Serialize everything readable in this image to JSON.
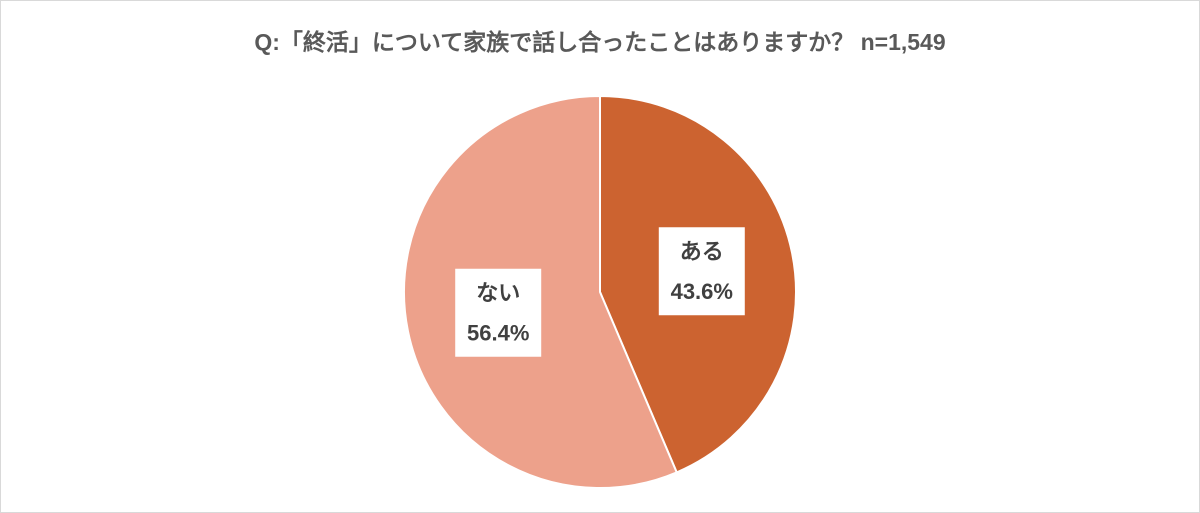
{
  "chart_data": {
    "type": "pie",
    "title": "Q:「終活」について家族で話し合ったことはありますか？ n=1,549",
    "categories": [
      "ある",
      "ない"
    ],
    "values": [
      43.6,
      56.4
    ],
    "value_labels": [
      "43.6%",
      "56.4%"
    ],
    "colors": [
      "#cc6330",
      "#eda18b"
    ]
  }
}
